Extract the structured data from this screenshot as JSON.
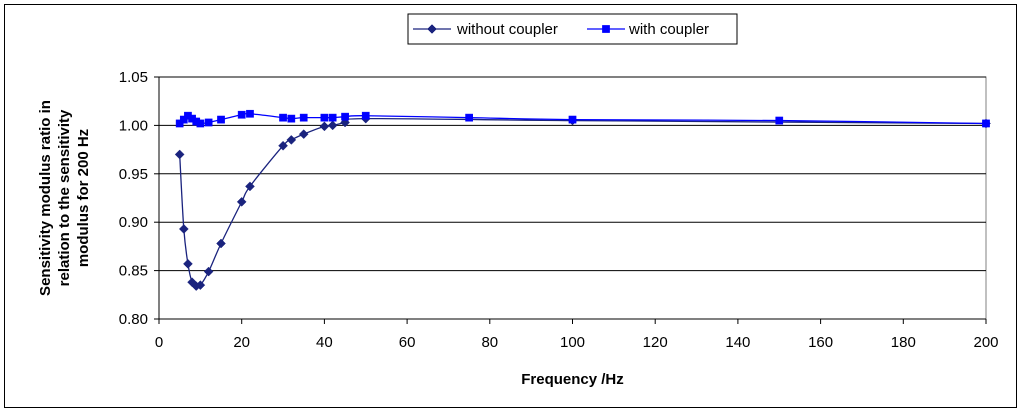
{
  "chart_data": {
    "type": "line",
    "title": "",
    "xlabel": "Frequency /Hz",
    "ylabel": "Sensitivity modulus ratio in relation to the sensitivity modulus for 200 Hz",
    "ylabel_lines": [
      "Sensitivity modulus ratio in",
      "relation to the sensitivity",
      "modulus for 200 Hz"
    ],
    "xlim": [
      0,
      200
    ],
    "ylim": [
      0.8,
      1.05
    ],
    "xticks": [
      "0",
      "20",
      "40",
      "60",
      "80",
      "100",
      "120",
      "140",
      "160",
      "180",
      "200"
    ],
    "yticks": [
      "0.80",
      "0.85",
      "0.90",
      "0.95",
      "1.00",
      "1.05"
    ],
    "grid": "horizontal major gridlines",
    "legend_position": "top-center",
    "series": [
      {
        "name": "without coupler",
        "marker": "diamond",
        "color": "#1a237e",
        "x": [
          5,
          6,
          7,
          8,
          9,
          10,
          12,
          15,
          20,
          22,
          30,
          32,
          35,
          40,
          42,
          45,
          50,
          100,
          200
        ],
        "y": [
          0.97,
          0.893,
          0.857,
          0.838,
          0.834,
          0.835,
          0.849,
          0.878,
          0.921,
          0.937,
          0.979,
          0.985,
          0.991,
          0.999,
          1.0,
          1.003,
          1.007,
          1.005,
          1.002
        ]
      },
      {
        "name": "with coupler",
        "marker": "square",
        "color": "#0000ff",
        "x": [
          5,
          6,
          7,
          8,
          9,
          10,
          12,
          15,
          20,
          22,
          30,
          32,
          35,
          40,
          42,
          45,
          50,
          75,
          100,
          150,
          200
        ],
        "y": [
          1.002,
          1.006,
          1.01,
          1.007,
          1.004,
          1.002,
          1.003,
          1.006,
          1.011,
          1.012,
          1.008,
          1.007,
          1.008,
          1.008,
          1.008,
          1.009,
          1.01,
          1.008,
          1.006,
          1.005,
          1.002
        ]
      }
    ]
  },
  "colors": {
    "gridline": "#000000",
    "axis": "#808080",
    "background": "#ffffff"
  }
}
